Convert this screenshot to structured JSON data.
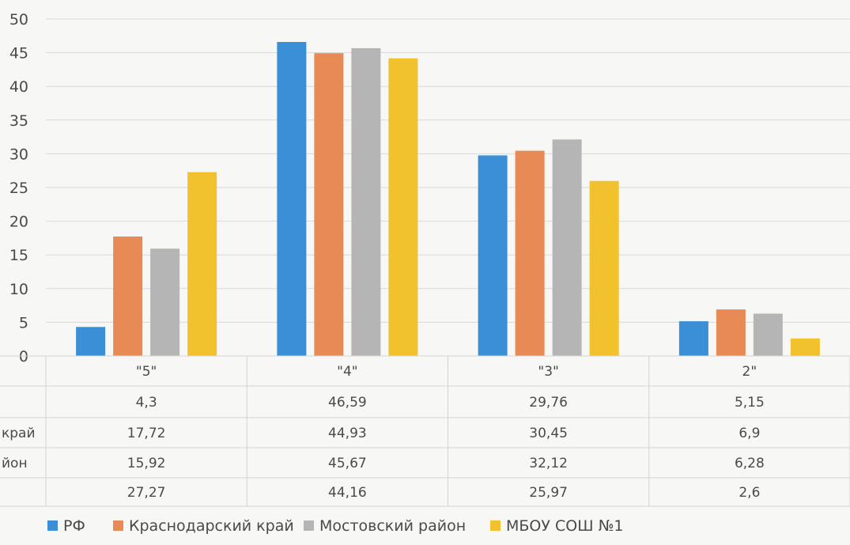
{
  "chart_data": {
    "type": "bar",
    "title": "",
    "xlabel": "",
    "ylabel": "",
    "ylim": [
      0,
      50
    ],
    "yticks": [
      0,
      5,
      10,
      15,
      20,
      25,
      30,
      35,
      40,
      45,
      50
    ],
    "grid": true,
    "legend_position": "bottom",
    "categories": [
      "\"5\"",
      "\"4\"",
      "\"3\"",
      "2\""
    ],
    "series": [
      {
        "name": "РФ",
        "color": "#3b8fd6",
        "values": [
          4.3,
          46.59,
          29.76,
          5.15
        ],
        "labels": [
          "4,3",
          "46,59",
          "29,76",
          "5,15"
        ],
        "row_label": ""
      },
      {
        "name": "Краснодарский край",
        "color": "#e88a55",
        "values": [
          17.72,
          44.93,
          30.45,
          6.9
        ],
        "labels": [
          "17,72",
          "44,93",
          "30,45",
          "6,9"
        ],
        "row_label": "край"
      },
      {
        "name": "Мостовский район",
        "color": "#b5b5b5",
        "values": [
          15.92,
          45.67,
          32.12,
          6.28
        ],
        "labels": [
          "15,92",
          "45,67",
          "32,12",
          "6,28"
        ],
        "row_label": "йон"
      },
      {
        "name": "МБОУ СОШ №1",
        "color": "#f2c22e",
        "values": [
          27.27,
          44.16,
          25.97,
          2.6
        ],
        "labels": [
          "27,27",
          "44,16",
          "25,97",
          "2,6"
        ],
        "row_label": ""
      }
    ]
  }
}
